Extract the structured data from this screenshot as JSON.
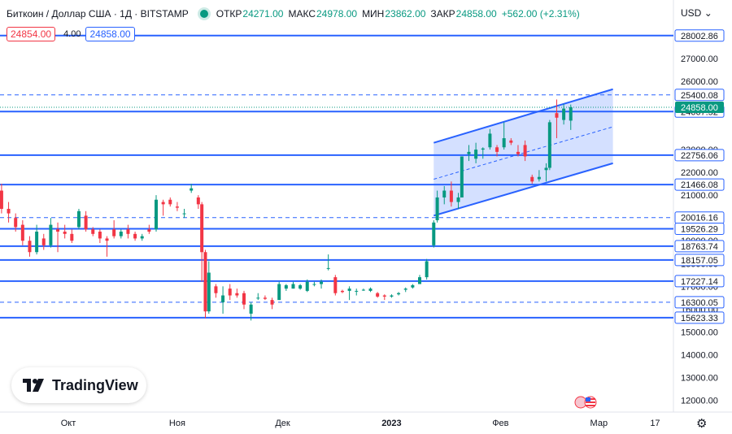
{
  "header": {
    "symbol": "Биткоин / Доллар США · 1Д · BITSTAMP",
    "open_label": "ОТКР",
    "open": "24271.00",
    "high_label": "МАКС",
    "high": "24978.00",
    "low_label": "МИН",
    "low": "23862.00",
    "close_label": "ЗАКР",
    "close": "24858.00",
    "change": "+562.00 (+2.31%)"
  },
  "quote": {
    "sell": "24854.00",
    "spread": "4.00",
    "buy": "24858.00"
  },
  "currency": "USD",
  "logo_text": "TradingView",
  "colors": {
    "up": "#089981",
    "down": "#f23645",
    "level": "#2962ff",
    "channel_fill": "#2962ff"
  },
  "chart_data": {
    "type": "candlestick",
    "ylim": [
      11400,
      28700
    ],
    "y_ticks": [
      {
        "label": "12000.00",
        "value": 12000
      },
      {
        "label": "13000.00",
        "value": 13000
      },
      {
        "label": "14000.00",
        "value": 14000
      },
      {
        "label": "15000.00",
        "value": 15000
      },
      {
        "label": "16000.00",
        "value": 16000
      },
      {
        "label": "17000.00",
        "value": 17000
      },
      {
        "label": "18000.00",
        "value": 18000
      },
      {
        "label": "19000.00",
        "value": 19000
      },
      {
        "label": "21000.00",
        "value": 21000
      },
      {
        "label": "22000.00",
        "value": 22000
      },
      {
        "label": "23000.00",
        "value": 23000
      },
      {
        "label": "26000.00",
        "value": 26000
      },
      {
        "label": "27000.00",
        "value": 27000
      }
    ],
    "x_ticks": [
      "Окт",
      "Ноя",
      "Дек",
      "2023",
      "Фев",
      "Мар",
      "17"
    ],
    "levels": [
      {
        "value": 28002.86,
        "label": "28002.86",
        "style": "solid"
      },
      {
        "value": 25400.08,
        "label": "25400.08",
        "style": "dashed"
      },
      {
        "value": 24667.52,
        "label": "24667.52",
        "style": "solid"
      },
      {
        "value": 22756.06,
        "label": "22756.06",
        "style": "solid"
      },
      {
        "value": 21466.08,
        "label": "21466.08",
        "style": "solid"
      },
      {
        "value": 20016.16,
        "label": "20016.16",
        "style": "dashed"
      },
      {
        "value": 19526.29,
        "label": "19526.29",
        "style": "solid"
      },
      {
        "value": 18763.74,
        "label": "18763.74",
        "style": "solid"
      },
      {
        "value": 18157.05,
        "label": "18157.05",
        "style": "solid"
      },
      {
        "value": 17227.14,
        "label": "17227.14",
        "style": "solid"
      },
      {
        "value": 16300.05,
        "label": "16300.05",
        "style": "dashed"
      },
      {
        "value": 15623.33,
        "label": "15623.33",
        "style": "solid"
      }
    ],
    "last_price": {
      "value": 24858.0,
      "label": "24858.00"
    },
    "channel": {
      "upper": [
        {
          "date": "2023-01-13",
          "value": 23300
        },
        {
          "date": "2023-03-05",
          "value": 25650
        }
      ],
      "lower": [
        {
          "date": "2023-01-13",
          "value": 20100
        },
        {
          "date": "2023-03-05",
          "value": 22400
        }
      ],
      "mid": [
        {
          "date": "2023-01-13",
          "value": 21700
        },
        {
          "date": "2023-03-05",
          "value": 24000
        }
      ]
    },
    "candles": [
      {
        "date": "2022-09-10",
        "o": 21650,
        "h": 21800,
        "l": 20800,
        "c": 21450
      },
      {
        "date": "2022-09-12",
        "o": 21200,
        "h": 21500,
        "l": 20200,
        "c": 20400
      },
      {
        "date": "2022-09-14",
        "o": 20400,
        "h": 20700,
        "l": 19800,
        "c": 20200
      },
      {
        "date": "2022-09-16",
        "o": 20000,
        "h": 20200,
        "l": 19400,
        "c": 19600
      },
      {
        "date": "2022-09-18",
        "o": 19700,
        "h": 19900,
        "l": 18800,
        "c": 19000
      },
      {
        "date": "2022-09-20",
        "o": 19000,
        "h": 19200,
        "l": 18300,
        "c": 18500
      },
      {
        "date": "2022-09-22",
        "o": 18500,
        "h": 19700,
        "l": 18400,
        "c": 19400
      },
      {
        "date": "2022-09-24",
        "o": 19100,
        "h": 19300,
        "l": 18600,
        "c": 18800
      },
      {
        "date": "2022-09-26",
        "o": 18800,
        "h": 20000,
        "l": 18700,
        "c": 19700
      },
      {
        "date": "2022-09-28",
        "o": 19500,
        "h": 19800,
        "l": 18500,
        "c": 19400
      },
      {
        "date": "2022-09-30",
        "o": 19400,
        "h": 19700,
        "l": 19100,
        "c": 19300
      },
      {
        "date": "2022-10-02",
        "o": 19300,
        "h": 19500,
        "l": 18900,
        "c": 19000
      },
      {
        "date": "2022-10-04",
        "o": 19600,
        "h": 20400,
        "l": 19500,
        "c": 20300
      },
      {
        "date": "2022-10-06",
        "o": 20100,
        "h": 20300,
        "l": 19400,
        "c": 19500
      },
      {
        "date": "2022-10-08",
        "o": 19500,
        "h": 19600,
        "l": 19200,
        "c": 19300
      },
      {
        "date": "2022-10-10",
        "o": 19400,
        "h": 19500,
        "l": 18900,
        "c": 19100
      },
      {
        "date": "2022-10-12",
        "o": 19100,
        "h": 19200,
        "l": 18300,
        "c": 19000
      },
      {
        "date": "2022-10-14",
        "o": 19500,
        "h": 19900,
        "l": 19100,
        "c": 19200
      },
      {
        "date": "2022-10-16",
        "o": 19200,
        "h": 19500,
        "l": 19100,
        "c": 19400
      },
      {
        "date": "2022-10-18",
        "o": 19500,
        "h": 19700,
        "l": 19100,
        "c": 19300
      },
      {
        "date": "2022-10-20",
        "o": 19300,
        "h": 19400,
        "l": 19000,
        "c": 19100
      },
      {
        "date": "2022-10-22",
        "o": 19100,
        "h": 19300,
        "l": 19000,
        "c": 19200
      },
      {
        "date": "2022-10-24",
        "o": 19500,
        "h": 19700,
        "l": 19300,
        "c": 19400
      },
      {
        "date": "2022-10-26",
        "o": 19500,
        "h": 21000,
        "l": 19400,
        "c": 20800
      },
      {
        "date": "2022-10-28",
        "o": 20700,
        "h": 20800,
        "l": 20100,
        "c": 20600
      },
      {
        "date": "2022-10-30",
        "o": 20800,
        "h": 20900,
        "l": 20500,
        "c": 20600
      },
      {
        "date": "2022-11-01",
        "o": 20500,
        "h": 20700,
        "l": 20300,
        "c": 20450
      },
      {
        "date": "2022-11-03",
        "o": 20200,
        "h": 20400,
        "l": 20000,
        "c": 20200
      },
      {
        "date": "2022-11-05",
        "o": 21200,
        "h": 21500,
        "l": 21100,
        "c": 21300
      },
      {
        "date": "2022-11-07",
        "o": 20900,
        "h": 21000,
        "l": 20400,
        "c": 20600
      },
      {
        "date": "2022-11-08",
        "o": 20600,
        "h": 20700,
        "l": 17200,
        "c": 18500
      },
      {
        "date": "2022-11-09",
        "o": 18500,
        "h": 18600,
        "l": 15600,
        "c": 15900
      },
      {
        "date": "2022-11-10",
        "o": 15900,
        "h": 18100,
        "l": 15800,
        "c": 17600
      },
      {
        "date": "2022-11-12",
        "o": 17000,
        "h": 17100,
        "l": 16500,
        "c": 16700
      },
      {
        "date": "2022-11-14",
        "o": 16300,
        "h": 17000,
        "l": 15800,
        "c": 16600
      },
      {
        "date": "2022-11-16",
        "o": 16900,
        "h": 17100,
        "l": 16400,
        "c": 16600
      },
      {
        "date": "2022-11-18",
        "o": 16700,
        "h": 16900,
        "l": 16500,
        "c": 16600
      },
      {
        "date": "2022-11-20",
        "o": 16700,
        "h": 16800,
        "l": 16000,
        "c": 16200
      },
      {
        "date": "2022-11-22",
        "o": 15800,
        "h": 16300,
        "l": 15500,
        "c": 16200
      },
      {
        "date": "2022-11-24",
        "o": 16500,
        "h": 16700,
        "l": 16400,
        "c": 16500
      },
      {
        "date": "2022-11-26",
        "o": 16500,
        "h": 16600,
        "l": 16400,
        "c": 16450
      },
      {
        "date": "2022-11-28",
        "o": 16400,
        "h": 16500,
        "l": 16000,
        "c": 16200
      },
      {
        "date": "2022-11-30",
        "o": 16400,
        "h": 17200,
        "l": 16400,
        "c": 17100
      },
      {
        "date": "2022-12-02",
        "o": 16900,
        "h": 17100,
        "l": 16800,
        "c": 17050
      },
      {
        "date": "2022-12-04",
        "o": 16900,
        "h": 17200,
        "l": 16900,
        "c": 17100
      },
      {
        "date": "2022-12-06",
        "o": 16900,
        "h": 17100,
        "l": 16850,
        "c": 17050
      },
      {
        "date": "2022-12-08",
        "o": 16800,
        "h": 17300,
        "l": 16750,
        "c": 17200
      },
      {
        "date": "2022-12-10",
        "o": 17100,
        "h": 17200,
        "l": 17000,
        "c": 17100
      },
      {
        "date": "2022-12-12",
        "o": 17100,
        "h": 17300,
        "l": 16900,
        "c": 17200
      },
      {
        "date": "2022-12-14",
        "o": 17800,
        "h": 18400,
        "l": 17700,
        "c": 17800
      },
      {
        "date": "2022-12-16",
        "o": 17400,
        "h": 17500,
        "l": 16600,
        "c": 16700
      },
      {
        "date": "2022-12-18",
        "o": 16800,
        "h": 16850,
        "l": 16700,
        "c": 16750
      },
      {
        "date": "2022-12-20",
        "o": 16800,
        "h": 17000,
        "l": 16400,
        "c": 16900
      },
      {
        "date": "2022-12-22",
        "o": 16800,
        "h": 16900,
        "l": 16600,
        "c": 16800
      },
      {
        "date": "2022-12-24",
        "o": 16850,
        "h": 16900,
        "l": 16800,
        "c": 16850
      },
      {
        "date": "2022-12-26",
        "o": 16800,
        "h": 16950,
        "l": 16750,
        "c": 16900
      },
      {
        "date": "2022-12-28",
        "o": 16700,
        "h": 16750,
        "l": 16500,
        "c": 16550
      },
      {
        "date": "2022-12-30",
        "o": 16600,
        "h": 16650,
        "l": 16400,
        "c": 16550
      },
      {
        "date": "2023-01-01",
        "o": 16550,
        "h": 16650,
        "l": 16500,
        "c": 16600
      },
      {
        "date": "2023-01-03",
        "o": 16650,
        "h": 16750,
        "l": 16600,
        "c": 16700
      },
      {
        "date": "2023-01-05",
        "o": 16850,
        "h": 16950,
        "l": 16750,
        "c": 16900
      },
      {
        "date": "2023-01-07",
        "o": 16950,
        "h": 17100,
        "l": 16900,
        "c": 17050
      },
      {
        "date": "2023-01-09",
        "o": 17100,
        "h": 17500,
        "l": 17100,
        "c": 17400
      },
      {
        "date": "2023-01-11",
        "o": 17400,
        "h": 18200,
        "l": 17300,
        "c": 18100
      },
      {
        "date": "2023-01-13",
        "o": 18800,
        "h": 19900,
        "l": 18700,
        "c": 19800
      },
      {
        "date": "2023-01-14",
        "o": 19900,
        "h": 21200,
        "l": 19800,
        "c": 20900
      },
      {
        "date": "2023-01-16",
        "o": 20900,
        "h": 21400,
        "l": 20600,
        "c": 21200
      },
      {
        "date": "2023-01-18",
        "o": 21200,
        "h": 21600,
        "l": 20500,
        "c": 20700
      },
      {
        "date": "2023-01-20",
        "o": 20700,
        "h": 21100,
        "l": 20400,
        "c": 20900
      },
      {
        "date": "2023-01-21",
        "o": 20900,
        "h": 22700,
        "l": 20900,
        "c": 22700
      },
      {
        "date": "2023-01-23",
        "o": 22800,
        "h": 23200,
        "l": 22500,
        "c": 22900
      },
      {
        "date": "2023-01-25",
        "o": 22600,
        "h": 23300,
        "l": 22400,
        "c": 23000
      },
      {
        "date": "2023-01-27",
        "o": 23000,
        "h": 23100,
        "l": 22600,
        "c": 23050
      },
      {
        "date": "2023-01-29",
        "o": 23100,
        "h": 23900,
        "l": 23000,
        "c": 23700
      },
      {
        "date": "2023-01-31",
        "o": 23100,
        "h": 23200,
        "l": 22700,
        "c": 22900
      },
      {
        "date": "2023-02-02",
        "o": 23100,
        "h": 24200,
        "l": 23000,
        "c": 23500
      },
      {
        "date": "2023-02-04",
        "o": 23400,
        "h": 23500,
        "l": 23200,
        "c": 23300
      },
      {
        "date": "2023-02-06",
        "o": 22900,
        "h": 23200,
        "l": 22700,
        "c": 22800
      },
      {
        "date": "2023-02-08",
        "o": 23200,
        "h": 23400,
        "l": 22500,
        "c": 22700
      },
      {
        "date": "2023-02-10",
        "o": 21800,
        "h": 21900,
        "l": 21500,
        "c": 21600
      },
      {
        "date": "2023-02-12",
        "o": 21700,
        "h": 22100,
        "l": 21600,
        "c": 21800
      },
      {
        "date": "2023-02-14",
        "o": 22100,
        "h": 22400,
        "l": 21600,
        "c": 22200
      },
      {
        "date": "2023-02-15",
        "o": 22200,
        "h": 24300,
        "l": 22100,
        "c": 24200
      },
      {
        "date": "2023-02-17",
        "o": 24600,
        "h": 25200,
        "l": 23500,
        "c": 24400
      },
      {
        "date": "2023-02-19",
        "o": 24300,
        "h": 25000,
        "l": 24100,
        "c": 24800
      },
      {
        "date": "2023-02-21",
        "o": 24271,
        "h": 24978,
        "l": 23862,
        "c": 24858
      }
    ]
  }
}
